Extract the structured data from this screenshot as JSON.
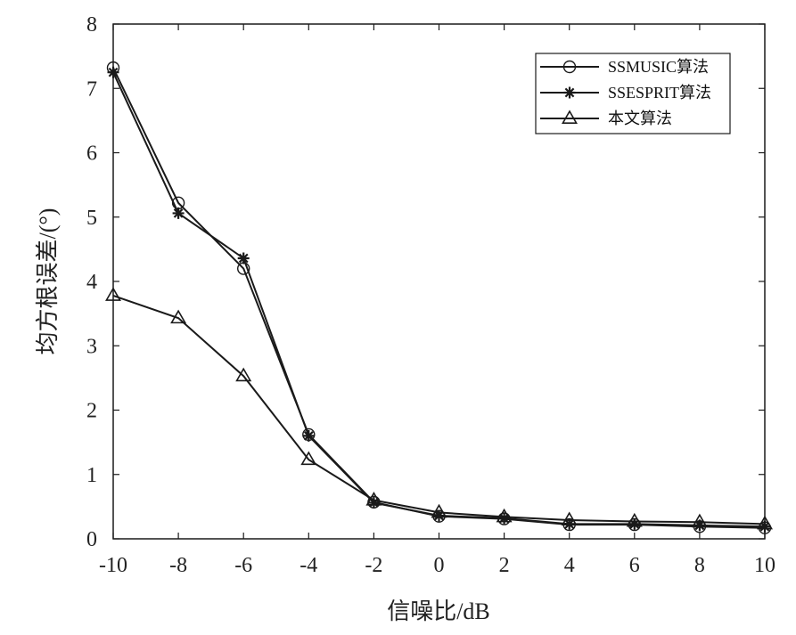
{
  "chart_data": {
    "type": "line",
    "xlabel": "信噪比/dB",
    "ylabel": "均方根误差/(°)",
    "xlim": [
      -10,
      10
    ],
    "ylim": [
      0,
      8
    ],
    "x_ticks": [
      "-10",
      "-8",
      "-6",
      "-4",
      "-2",
      "0",
      "2",
      "4",
      "6",
      "8",
      "10"
    ],
    "y_ticks": [
      "0",
      "1",
      "2",
      "3",
      "4",
      "5",
      "6",
      "7",
      "8"
    ],
    "grid": false,
    "legend_position": "top-right",
    "x": [
      -10,
      -8,
      -6,
      -4,
      -2,
      0,
      2,
      4,
      6,
      8,
      10
    ],
    "series": [
      {
        "name": "SSMUSIC算法",
        "marker": "circle",
        "values": [
          7.32,
          5.22,
          4.2,
          1.62,
          0.57,
          0.35,
          0.31,
          0.22,
          0.22,
          0.19,
          0.17
        ]
      },
      {
        "name": "SSESPRIT算法",
        "marker": "asterisk",
        "values": [
          7.25,
          5.06,
          4.36,
          1.6,
          0.56,
          0.36,
          0.32,
          0.23,
          0.23,
          0.21,
          0.19
        ]
      },
      {
        "name": "本文算法",
        "marker": "triangle",
        "values": [
          3.78,
          3.43,
          2.53,
          1.23,
          0.6,
          0.41,
          0.34,
          0.29,
          0.27,
          0.26,
          0.23
        ]
      }
    ],
    "colors": {
      "line": "#1a1a1a",
      "axis": "#1a1a1a"
    }
  }
}
